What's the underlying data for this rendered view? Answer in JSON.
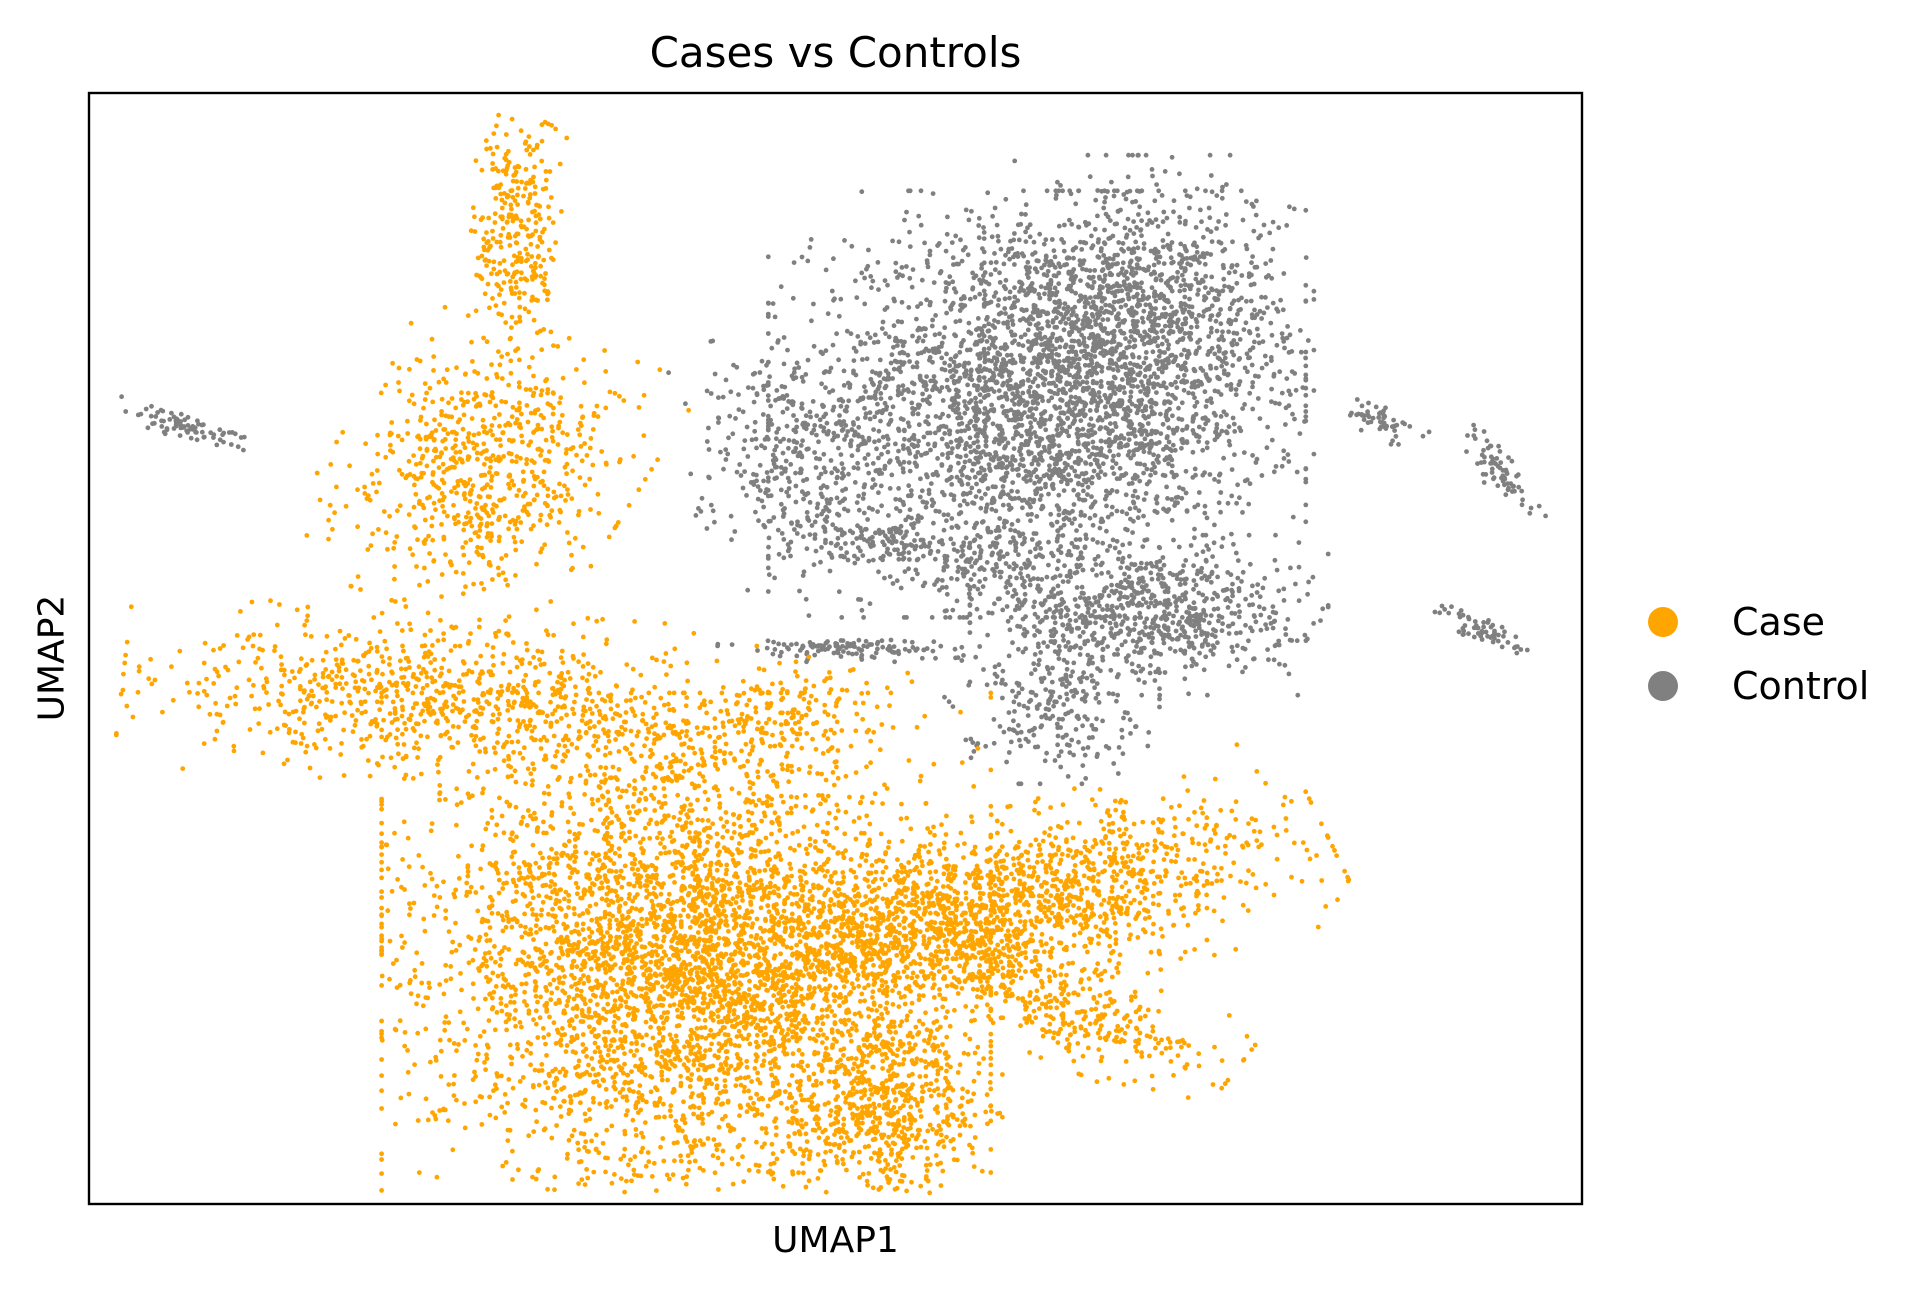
{
  "chart_data": {
    "type": "scatter",
    "title": "Cases vs Controls",
    "xlabel": "UMAP1",
    "ylabel": "UMAP2",
    "xlim": [
      0,
      100
    ],
    "ylim": [
      0,
      100
    ],
    "grid": false,
    "ticks": "none",
    "legend_position": "right",
    "series": [
      {
        "name": "Case",
        "color": "#FFA500",
        "clusters": [
          {
            "cx": 28.7,
            "cy": 87.5,
            "sx": 1.4,
            "sy": 5.5,
            "rot": 0,
            "n": 300
          },
          {
            "cx": 26.5,
            "cy": 66.0,
            "sx": 4.2,
            "sy": 5.5,
            "rot": -25,
            "n": 700
          },
          {
            "cx": 25.0,
            "cy": 45.5,
            "sx": 9.5,
            "sy": 3.3,
            "rot": -5,
            "n": 900
          },
          {
            "cx": 40.0,
            "cy": 22.0,
            "sx": 8.5,
            "sy": 10.0,
            "rot": 0,
            "n": 4200
          },
          {
            "cx": 60.0,
            "cy": 26.0,
            "sx": 10.0,
            "sy": 3.6,
            "rot": 20,
            "n": 1800
          },
          {
            "cx": 53.5,
            "cy": 9.0,
            "sx": 3.2,
            "sy": 4.0,
            "rot": 0,
            "n": 600
          },
          {
            "cx": 65.0,
            "cy": 18.0,
            "sx": 5.5,
            "sy": 2.0,
            "rot": -30,
            "n": 350
          },
          {
            "cx": 46.0,
            "cy": 44.0,
            "sx": 4.0,
            "sy": 1.8,
            "rot": 20,
            "n": 150
          }
        ]
      },
      {
        "name": "Control",
        "color": "#808080",
        "clusters": [
          {
            "cx": 63.5,
            "cy": 72.0,
            "sx": 7.5,
            "sy": 8.0,
            "rot": 0,
            "n": 3000
          },
          {
            "cx": 71.0,
            "cy": 80.0,
            "sx": 4.6,
            "sy": 6.0,
            "rot": 0,
            "n": 900
          },
          {
            "cx": 47.5,
            "cy": 67.0,
            "sx": 3.0,
            "sy": 5.0,
            "rot": 20,
            "n": 300
          },
          {
            "cx": 56.0,
            "cy": 59.0,
            "sx": 6.5,
            "sy": 1.5,
            "rot": -15,
            "n": 250
          },
          {
            "cx": 71.0,
            "cy": 53.0,
            "sx": 5.0,
            "sy": 3.0,
            "rot": 0,
            "n": 700
          },
          {
            "cx": 64.5,
            "cy": 45.5,
            "sx": 3.0,
            "sy": 3.2,
            "rot": 0,
            "n": 250
          },
          {
            "cx": 50.5,
            "cy": 50.0,
            "sx": 3.5,
            "sy": 0.5,
            "rot": 0,
            "n": 120
          },
          {
            "cx": 6.5,
            "cy": 70.0,
            "sx": 2.1,
            "sy": 0.5,
            "rot": -25,
            "n": 80
          },
          {
            "cx": 86.5,
            "cy": 70.5,
            "sx": 1.5,
            "sy": 0.6,
            "rot": -35,
            "n": 50
          },
          {
            "cx": 94.5,
            "cy": 66.0,
            "sx": 0.6,
            "sy": 2.2,
            "rot": 30,
            "n": 70
          },
          {
            "cx": 93.5,
            "cy": 51.5,
            "sx": 1.8,
            "sy": 0.5,
            "rot": -30,
            "n": 60
          }
        ]
      }
    ]
  }
}
